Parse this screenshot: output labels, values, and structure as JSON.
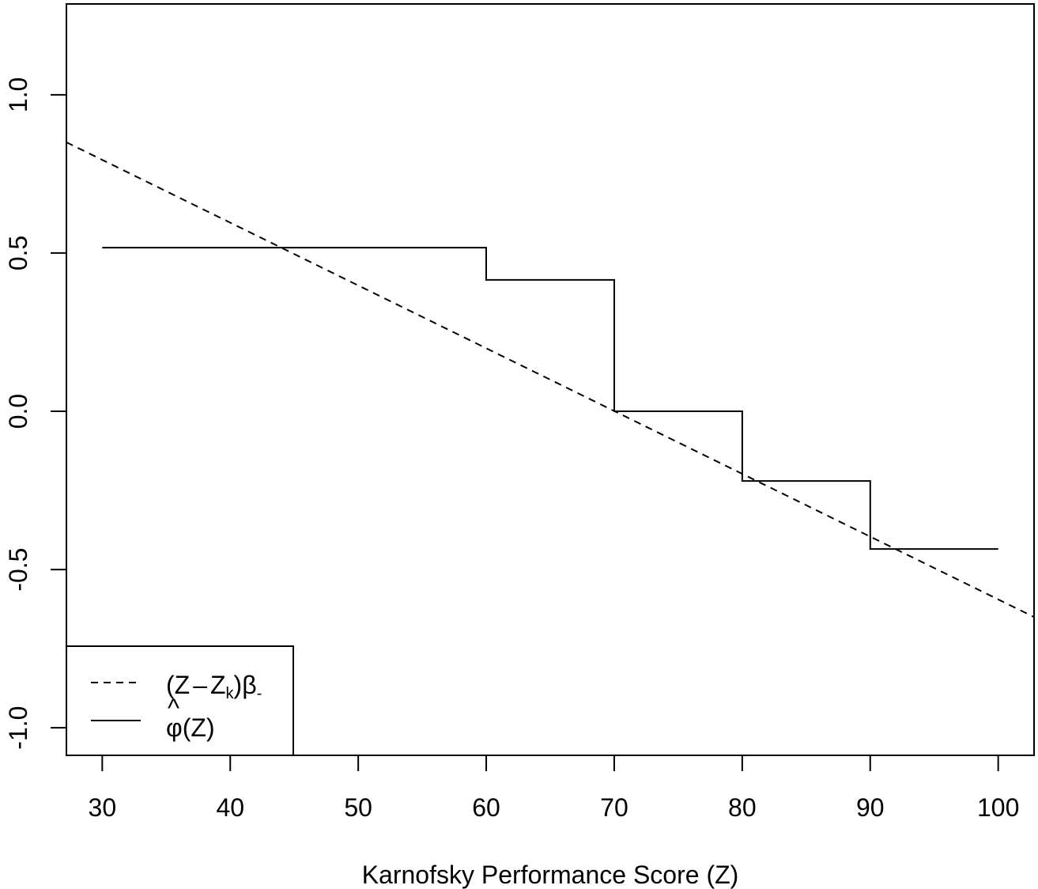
{
  "chart_data": {
    "type": "line",
    "xlabel": "Karnofsky Performance Score (Z)",
    "ylabel": "",
    "xlim": [
      27.2,
      102.8
    ],
    "ylim": [
      -1.087,
      1.287
    ],
    "x_ticks": [
      30,
      40,
      50,
      60,
      70,
      80,
      90,
      100
    ],
    "x_tick_labels": [
      "30",
      "40",
      "50",
      "60",
      "70",
      "80",
      "90",
      "100"
    ],
    "y_ticks": [
      -1.0,
      -0.5,
      0.0,
      0.5,
      1.0
    ],
    "y_tick_labels": [
      "-1.0",
      "-0.5",
      "0.0",
      "0.5",
      "1.0"
    ],
    "grid": false,
    "legend_position": "bottom-left",
    "series": [
      {
        "name": "(Z − Z_k)β₋",
        "style": "dashed",
        "color": "#000000",
        "x": [
          27.2,
          102.8
        ],
        "y": [
          0.85,
          -0.65
        ]
      },
      {
        "name": "φ̂(Z)",
        "style": "solid-step",
        "color": "#000000",
        "x": [
          30,
          60,
          60,
          70,
          70,
          80,
          80,
          90,
          90,
          100
        ],
        "y": [
          0.517,
          0.517,
          0.415,
          0.415,
          0.0,
          0.0,
          -0.22,
          -0.22,
          -0.435,
          -0.435
        ]
      }
    ]
  }
}
